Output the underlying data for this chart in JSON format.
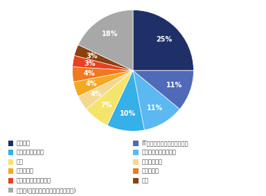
{
  "labels": [
    "メーカー",
    "IT・インターネット・ゲーム",
    "流通・小売・サービス",
    "コンサルティング",
    "商社",
    "建設・不動産",
    "メディカル",
    "物流・運輸",
    "広告・出版・マスコミ",
    "金融",
    "その他(インフラ・教育・官公庁など)"
  ],
  "values": [
    25,
    11,
    11,
    10,
    7,
    4,
    4,
    4,
    3,
    3,
    18
  ],
  "colors": [
    "#1f3068",
    "#4f6ab8",
    "#5bb8f0",
    "#35b0e8",
    "#f5e46a",
    "#f5d890",
    "#f5a820",
    "#f07820",
    "#e84020",
    "#8b4010",
    "#a8a8a8"
  ],
  "legend_left_labels": [
    "メーカー",
    "コンサルティング",
    "商社",
    "メディカル",
    "広告・出版・マスコミ",
    "その他(インフラ・教育・官公庁など)"
  ],
  "legend_left_color_indices": [
    0,
    3,
    4,
    6,
    8,
    10
  ],
  "legend_right_labels": [
    "IT・インターネット・ゲーム",
    "流通・小売・サービス",
    "建設・不動産",
    "物流・運輸",
    "金融"
  ],
  "legend_right_color_indices": [
    1,
    2,
    5,
    7,
    9
  ],
  "background_color": "#ffffff",
  "text_color": "#404040",
  "font_size": 6.0,
  "pct_font_size": 7.0
}
